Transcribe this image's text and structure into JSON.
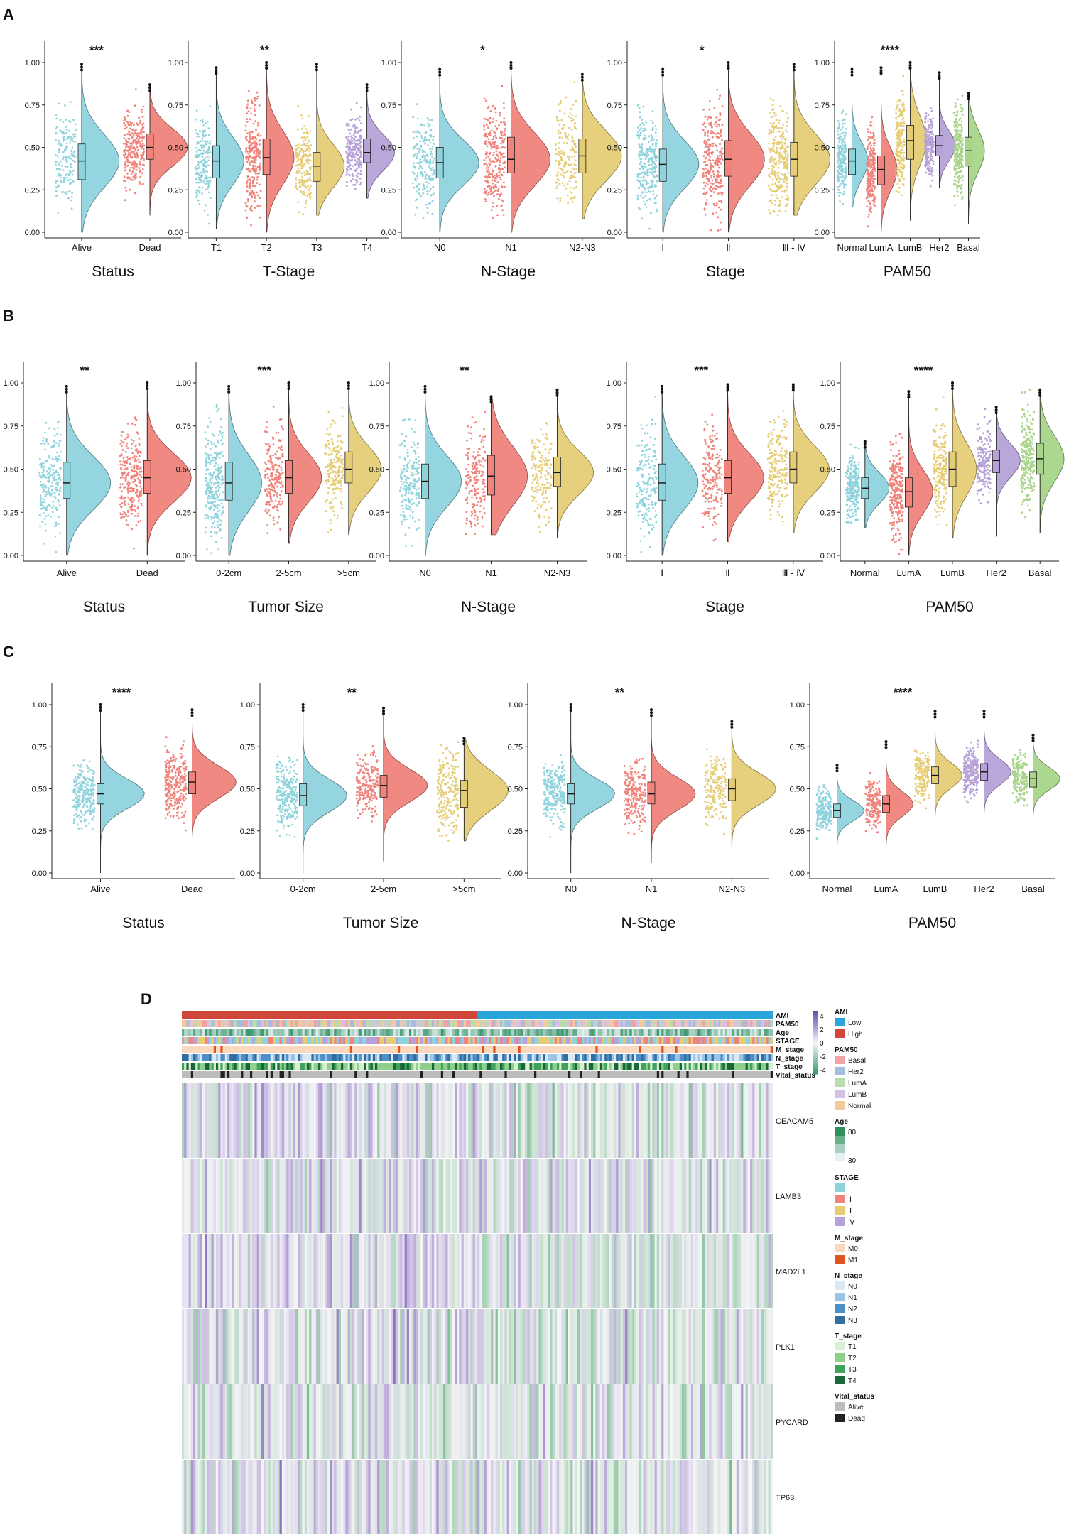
{
  "figure": {
    "panel_labels": [
      "A",
      "B",
      "C",
      "D"
    ]
  },
  "colors": {
    "g1": "#8fd3dd",
    "g2": "#f0837c",
    "g3": "#e5cd76",
    "g4": "#b6a2d8",
    "g5": "#a8d589",
    "heat_low": "#3e9a6a",
    "heat_high": "#6a4fb0",
    "ami_low": "#2aa5dc",
    "ami_high": "#d0473a"
  },
  "chart_data": [
    {
      "type": "violin",
      "panel": "A",
      "title": "Status",
      "significance": "***",
      "categories": [
        "Alive",
        "Dead"
      ],
      "medians": [
        0.42,
        0.5
      ],
      "q1": [
        0.31,
        0.43
      ],
      "q3": [
        0.52,
        0.58
      ],
      "range": [
        [
          0.0,
          0.99
        ],
        [
          0.1,
          0.87
        ]
      ],
      "ylim": [
        0,
        1
      ],
      "yticks": [
        "0.00",
        "0.25",
        "0.50",
        "0.75",
        "1.00"
      ]
    },
    {
      "type": "violin",
      "panel": "A",
      "title": "T-Stage",
      "significance": "**",
      "categories": [
        "T1",
        "T2",
        "T3",
        "T4"
      ],
      "medians": [
        0.42,
        0.44,
        0.39,
        0.47
      ],
      "q1": [
        0.32,
        0.34,
        0.3,
        0.41
      ],
      "q3": [
        0.51,
        0.55,
        0.47,
        0.55
      ],
      "range": [
        [
          0.02,
          0.97
        ],
        [
          0.0,
          1.0
        ],
        [
          0.1,
          0.99
        ],
        [
          0.2,
          0.87
        ]
      ],
      "ylim": [
        0,
        1
      ]
    },
    {
      "type": "violin",
      "panel": "A",
      "title": "N-Stage",
      "significance": "*",
      "categories": [
        "N0",
        "N1",
        "N2-N3"
      ],
      "medians": [
        0.41,
        0.43,
        0.45
      ],
      "q1": [
        0.32,
        0.35,
        0.35
      ],
      "q3": [
        0.5,
        0.56,
        0.55
      ],
      "range": [
        [
          0.0,
          0.96
        ],
        [
          0.0,
          1.0
        ],
        [
          0.08,
          0.93
        ]
      ],
      "ylim": [
        0,
        1
      ]
    },
    {
      "type": "violin",
      "panel": "A",
      "title": "Stage",
      "significance": "*",
      "categories": [
        "Ⅰ",
        "Ⅱ",
        "Ⅲ - Ⅳ"
      ],
      "medians": [
        0.4,
        0.43,
        0.43
      ],
      "q1": [
        0.3,
        0.33,
        0.33
      ],
      "q3": [
        0.49,
        0.54,
        0.53
      ],
      "range": [
        [
          0.0,
          0.96
        ],
        [
          0.0,
          1.0
        ],
        [
          0.1,
          0.99
        ]
      ],
      "ylim": [
        0,
        1
      ]
    },
    {
      "type": "violin",
      "panel": "A",
      "title": "PAM50",
      "significance": "****",
      "categories": [
        "Normal",
        "LumA",
        "LumB",
        "Her2",
        "Basal"
      ],
      "medians": [
        0.42,
        0.37,
        0.54,
        0.51,
        0.48
      ],
      "q1": [
        0.34,
        0.28,
        0.43,
        0.45,
        0.39
      ],
      "q3": [
        0.49,
        0.45,
        0.63,
        0.57,
        0.56
      ],
      "range": [
        [
          0.15,
          0.96
        ],
        [
          0.0,
          0.97
        ],
        [
          0.07,
          1.0
        ],
        [
          0.26,
          0.94
        ],
        [
          0.05,
          0.82
        ]
      ],
      "ylim": [
        0,
        1
      ]
    },
    {
      "type": "violin",
      "panel": "B",
      "title": "Status",
      "significance": "**",
      "categories": [
        "Alive",
        "Dead"
      ],
      "medians": [
        0.42,
        0.45
      ],
      "q1": [
        0.33,
        0.36
      ],
      "q3": [
        0.54,
        0.55
      ],
      "range": [
        [
          0.0,
          0.98
        ],
        [
          0.0,
          1.0
        ]
      ],
      "ylim": [
        0,
        1
      ]
    },
    {
      "type": "violin",
      "panel": "B",
      "title": "Tumor Size",
      "significance": "***",
      "categories": [
        "0-2cm",
        "2-5cm",
        ">5cm"
      ],
      "medians": [
        0.42,
        0.45,
        0.5
      ],
      "q1": [
        0.32,
        0.36,
        0.42
      ],
      "q3": [
        0.54,
        0.55,
        0.6
      ],
      "range": [
        [
          0.0,
          0.98
        ],
        [
          0.07,
          1.0
        ],
        [
          0.12,
          1.0
        ]
      ],
      "ylim": [
        0,
        1
      ]
    },
    {
      "type": "violin",
      "panel": "B",
      "title": "N-Stage",
      "significance": "**",
      "categories": [
        "N0",
        "N1",
        "N2-N3"
      ],
      "medians": [
        0.43,
        0.46,
        0.48
      ],
      "q1": [
        0.33,
        0.35,
        0.4
      ],
      "q3": [
        0.53,
        0.58,
        0.57
      ],
      "range": [
        [
          0.0,
          0.98
        ],
        [
          0.12,
          0.92
        ],
        [
          0.1,
          0.96
        ]
      ],
      "ylim": [
        0,
        1
      ]
    },
    {
      "type": "violin",
      "panel": "B",
      "title": "Stage",
      "significance": "***",
      "categories": [
        "Ⅰ",
        "Ⅱ",
        "Ⅲ - Ⅳ"
      ],
      "medians": [
        0.42,
        0.45,
        0.5
      ],
      "q1": [
        0.32,
        0.36,
        0.42
      ],
      "q3": [
        0.53,
        0.55,
        0.6
      ],
      "range": [
        [
          0.0,
          0.98
        ],
        [
          0.08,
          0.99
        ],
        [
          0.13,
          0.99
        ]
      ],
      "ylim": [
        0,
        1
      ]
    },
    {
      "type": "violin",
      "panel": "B",
      "title": "PAM50",
      "significance": "****",
      "categories": [
        "Normal",
        "LumA",
        "LumB",
        "Her2",
        "Basal"
      ],
      "medians": [
        0.39,
        0.37,
        0.5,
        0.55,
        0.56
      ],
      "q1": [
        0.33,
        0.28,
        0.4,
        0.48,
        0.47
      ],
      "q3": [
        0.45,
        0.45,
        0.6,
        0.61,
        0.65
      ],
      "range": [
        [
          0.16,
          0.66
        ],
        [
          0.0,
          0.95
        ],
        [
          0.1,
          1.0
        ],
        [
          0.11,
          0.86
        ],
        [
          0.13,
          0.96
        ]
      ],
      "ylim": [
        0,
        1
      ]
    },
    {
      "type": "violin",
      "panel": "C",
      "title": "Status",
      "significance": "****",
      "categories": [
        "Alive",
        "Dead"
      ],
      "medians": [
        0.47,
        0.54
      ],
      "q1": [
        0.41,
        0.47
      ],
      "q3": [
        0.53,
        0.6
      ],
      "range": [
        [
          0.0,
          1.0
        ],
        [
          0.18,
          0.97
        ]
      ],
      "ylim": [
        0,
        1
      ]
    },
    {
      "type": "violin",
      "panel": "C",
      "title": "Tumor Size",
      "significance": "**",
      "categories": [
        "0-2cm",
        "2-5cm",
        ">5cm"
      ],
      "medians": [
        0.46,
        0.52,
        0.49
      ],
      "q1": [
        0.4,
        0.45,
        0.39
      ],
      "q3": [
        0.53,
        0.58,
        0.55
      ],
      "range": [
        [
          0.0,
          1.0
        ],
        [
          0.07,
          0.98
        ],
        [
          0.19,
          0.8
        ]
      ],
      "ylim": [
        0,
        1
      ]
    },
    {
      "type": "violin",
      "panel": "C",
      "title": "N-Stage",
      "significance": "**",
      "categories": [
        "N0",
        "N1",
        "N2-N3"
      ],
      "medians": [
        0.47,
        0.47,
        0.5
      ],
      "q1": [
        0.41,
        0.41,
        0.43
      ],
      "q3": [
        0.53,
        0.54,
        0.56
      ],
      "range": [
        [
          0.0,
          1.0
        ],
        [
          0.06,
          0.97
        ],
        [
          0.16,
          0.9
        ]
      ],
      "ylim": [
        0,
        1
      ]
    },
    {
      "type": "violin",
      "panel": "C",
      "title": "PAM50",
      "significance": "****",
      "categories": [
        "Normal",
        "LumA",
        "LumB",
        "Her2",
        "Basal"
      ],
      "medians": [
        0.37,
        0.41,
        0.58,
        0.6,
        0.56
      ],
      "q1": [
        0.33,
        0.36,
        0.53,
        0.55,
        0.51
      ],
      "q3": [
        0.41,
        0.46,
        0.63,
        0.65,
        0.6
      ],
      "range": [
        [
          0.12,
          0.64
        ],
        [
          0.0,
          0.78
        ],
        [
          0.31,
          0.96
        ],
        [
          0.33,
          0.96
        ],
        [
          0.27,
          0.82
        ]
      ],
      "ylim": [
        0,
        1
      ]
    },
    {
      "type": "heatmap",
      "panel": "D",
      "annotation_tracks": [
        "AMI",
        "PAM50",
        "Age",
        "STAGE",
        "M_stage",
        "N_stage",
        "T_stage",
        "Vital_status"
      ],
      "rows": [
        "CEACAM5",
        "LAMB3",
        "MAD2L1",
        "PLK1",
        "PYCARD",
        "TP63"
      ],
      "color_scale": {
        "ticks": [
          "4",
          "2",
          "0",
          "-2",
          "-4"
        ],
        "min": -4,
        "max": 4
      },
      "legends": [
        {
          "title": "AMI",
          "items": [
            {
              "label": "Low",
              "color": "#2aa5dc"
            },
            {
              "label": "High",
              "color": "#d0473a"
            }
          ]
        },
        {
          "title": "PAM50",
          "items": [
            {
              "label": "Basal",
              "color": "#f1a3a6"
            },
            {
              "label": "Her2",
              "color": "#a6bedd"
            },
            {
              "label": "LumA",
              "color": "#b8dcb0"
            },
            {
              "label": "LumB",
              "color": "#d4c2e3"
            },
            {
              "label": "Normal",
              "color": "#f6c99a"
            }
          ]
        },
        {
          "title": "Age",
          "ticks": [
            "80",
            "30"
          ],
          "gradient": [
            "#2f8f5b",
            "#e6f1f4"
          ]
        },
        {
          "title": "STAGE",
          "items": [
            {
              "label": "Ⅰ",
              "color": "#8fd3dd"
            },
            {
              "label": "Ⅱ",
              "color": "#f0837c"
            },
            {
              "label": "Ⅲ",
              "color": "#e5cd76"
            },
            {
              "label": "Ⅳ",
              "color": "#b6a2d8"
            }
          ]
        },
        {
          "title": "M_stage",
          "items": [
            {
              "label": "M0",
              "color": "#fbd9bf"
            },
            {
              "label": "M1",
              "color": "#e0541f"
            }
          ]
        },
        {
          "title": "N_stage",
          "items": [
            {
              "label": "N0",
              "color": "#dde8f5"
            },
            {
              "label": "N1",
              "color": "#9cc4e6"
            },
            {
              "label": "N2",
              "color": "#4d8fc8"
            },
            {
              "label": "N3",
              "color": "#2f6e9e"
            }
          ]
        },
        {
          "title": "T_stage",
          "items": [
            {
              "label": "T1",
              "color": "#d8efd3"
            },
            {
              "label": "T2",
              "color": "#8ecf8c"
            },
            {
              "label": "T3",
              "color": "#3fa35a"
            },
            {
              "label": "T4",
              "color": "#19663a"
            }
          ]
        },
        {
          "title": "Vital_status",
          "items": [
            {
              "label": "Alive",
              "color": "#bdbdbd"
            },
            {
              "label": "Dead",
              "color": "#222222"
            }
          ]
        }
      ]
    }
  ]
}
